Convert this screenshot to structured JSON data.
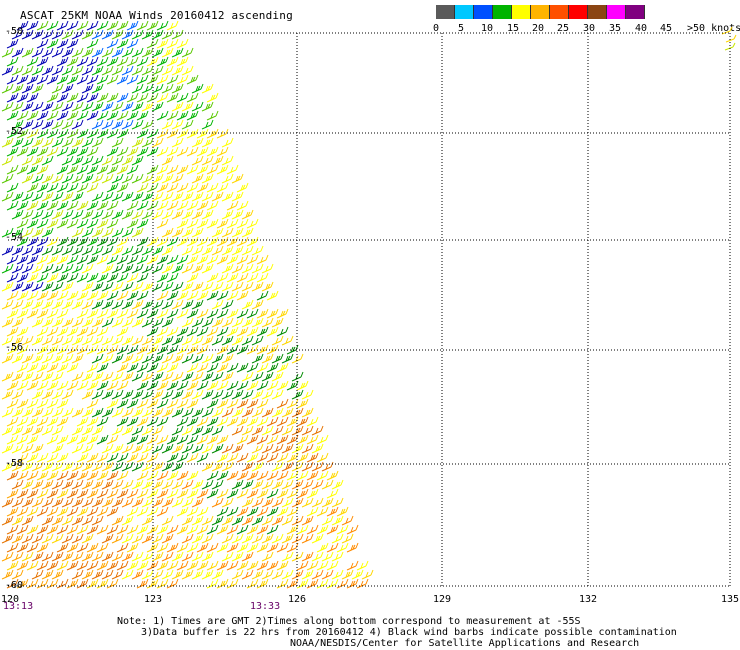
{
  "title": "ASCAT 25KM NOAA Winds 20160412 ascending",
  "legend": {
    "colors": [
      "#5a5a5a",
      "#00c8ff",
      "#0050ff",
      "#00b400",
      "#ffff00",
      "#ffb400",
      "#ff5000",
      "#ff0000",
      "#8b4513",
      "#ff00ff",
      "#800080"
    ],
    "tick_labels": [
      "0",
      "5",
      "10",
      "15",
      "20",
      "25",
      "30",
      "35",
      "40",
      "45",
      ">50 knots"
    ]
  },
  "map": {
    "lat_labels": [
      "-50",
      "-52",
      "-54",
      "-56",
      "-58",
      "-60"
    ],
    "lon_labels": [
      "120",
      "123",
      "126",
      "129",
      "132",
      "135"
    ],
    "lat_range": [
      -60,
      -50
    ],
    "lon_range": [
      120,
      135
    ],
    "grid": "dotted"
  },
  "time_labels": [
    "13:13",
    "13:33"
  ],
  "notes": {
    "line1": "Note: 1) Times are GMT 2)Times along bottom correspond to measurement at -55S",
    "line2": "3)Data buffer is 22 hrs from 20160412 4) Black wind barbs indicate possible contamination",
    "line3": "NOAA/NESDIS/Center for Satellite Applications and Research"
  },
  "wind_colors": [
    "#0000b4",
    "#0064ff",
    "#00b400",
    "#5ac800",
    "#008c00",
    "#c8e600",
    "#ffff00",
    "#ffd700",
    "#ffa500",
    "#e67300",
    "#ff8c00"
  ]
}
